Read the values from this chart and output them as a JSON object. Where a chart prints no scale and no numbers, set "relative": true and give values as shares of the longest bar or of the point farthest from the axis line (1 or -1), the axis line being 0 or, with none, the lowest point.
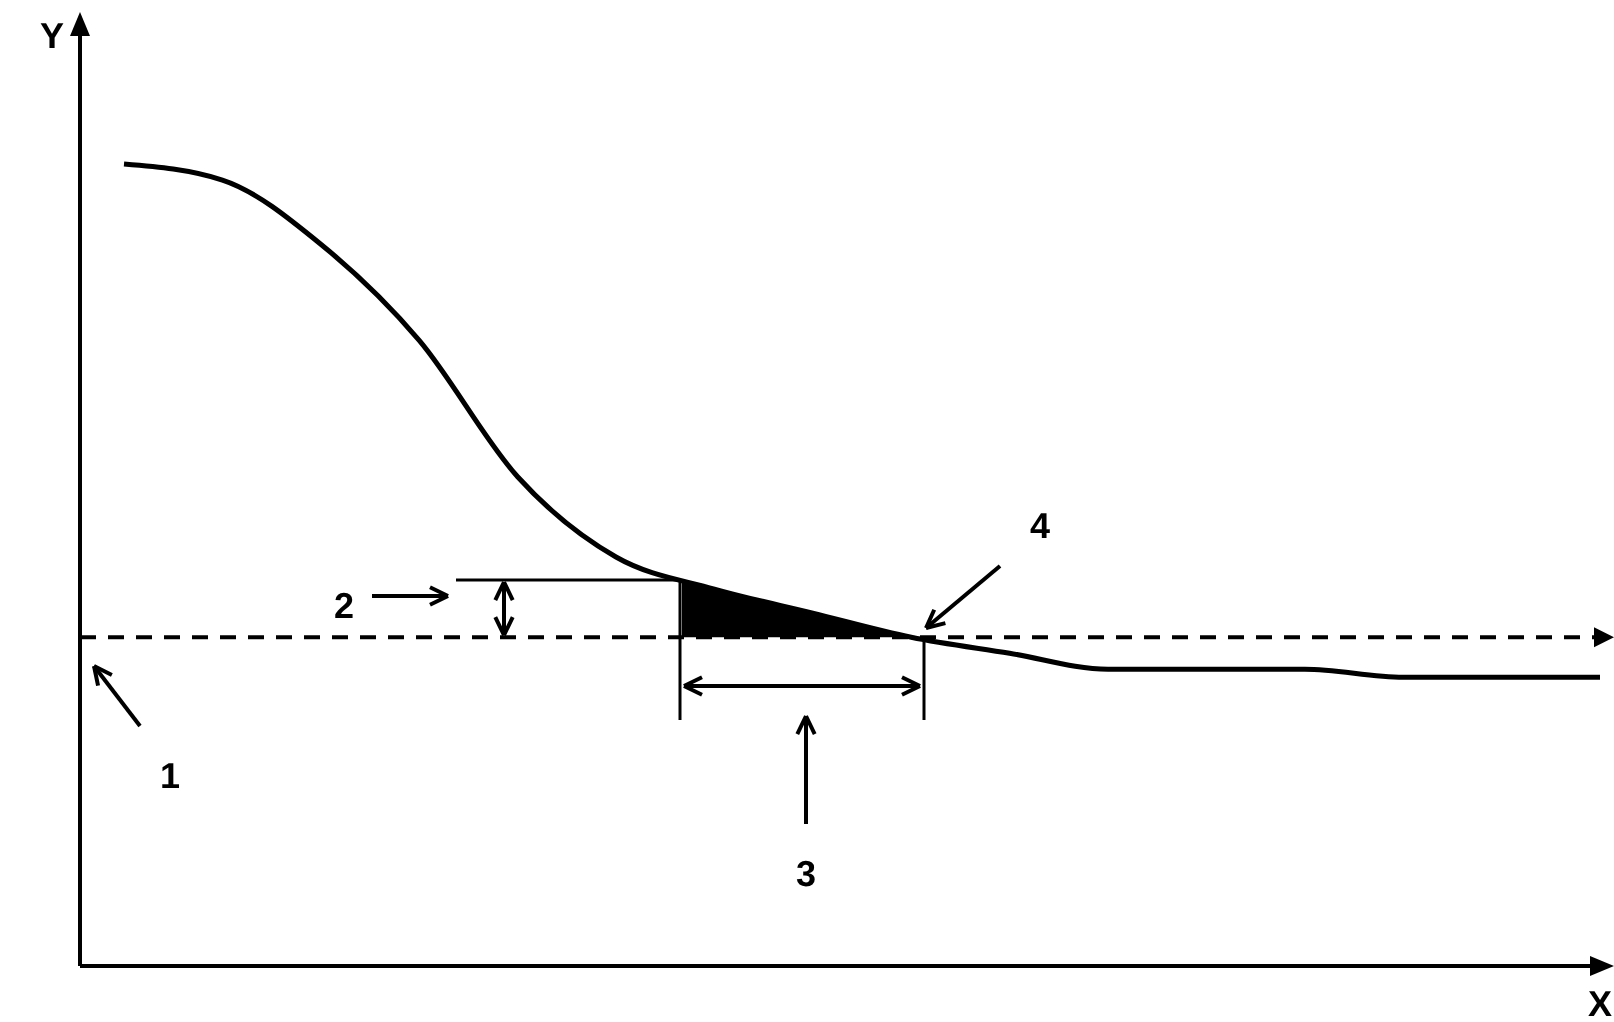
{
  "chart_data": {
    "type": "line",
    "relative": true,
    "xlabel": "X",
    "ylabel": "Y",
    "categories": [
      null,
      null,
      null,
      null,
      null,
      null,
      null,
      null,
      null,
      null,
      null,
      null,
      null,
      null,
      null,
      null
    ],
    "series": [
      {
        "color": "#000000",
        "values": [
          1,
          0.98,
          0.9,
          0.78,
          0.61,
          0.51,
          0.47,
          0.44,
          0.41,
          0.39,
          0.37,
          0.37,
          0.37,
          0.36,
          0.36,
          0.36
        ]
      }
    ],
    "ref_lines": [
      {
        "axis": "y",
        "value": 0.41,
        "color": "#000000",
        "line_style": "dashed"
      }
    ],
    "annotations": [
      "1",
      "2",
      "3",
      "4"
    ],
    "marker": "none",
    "line_style": "solid"
  }
}
